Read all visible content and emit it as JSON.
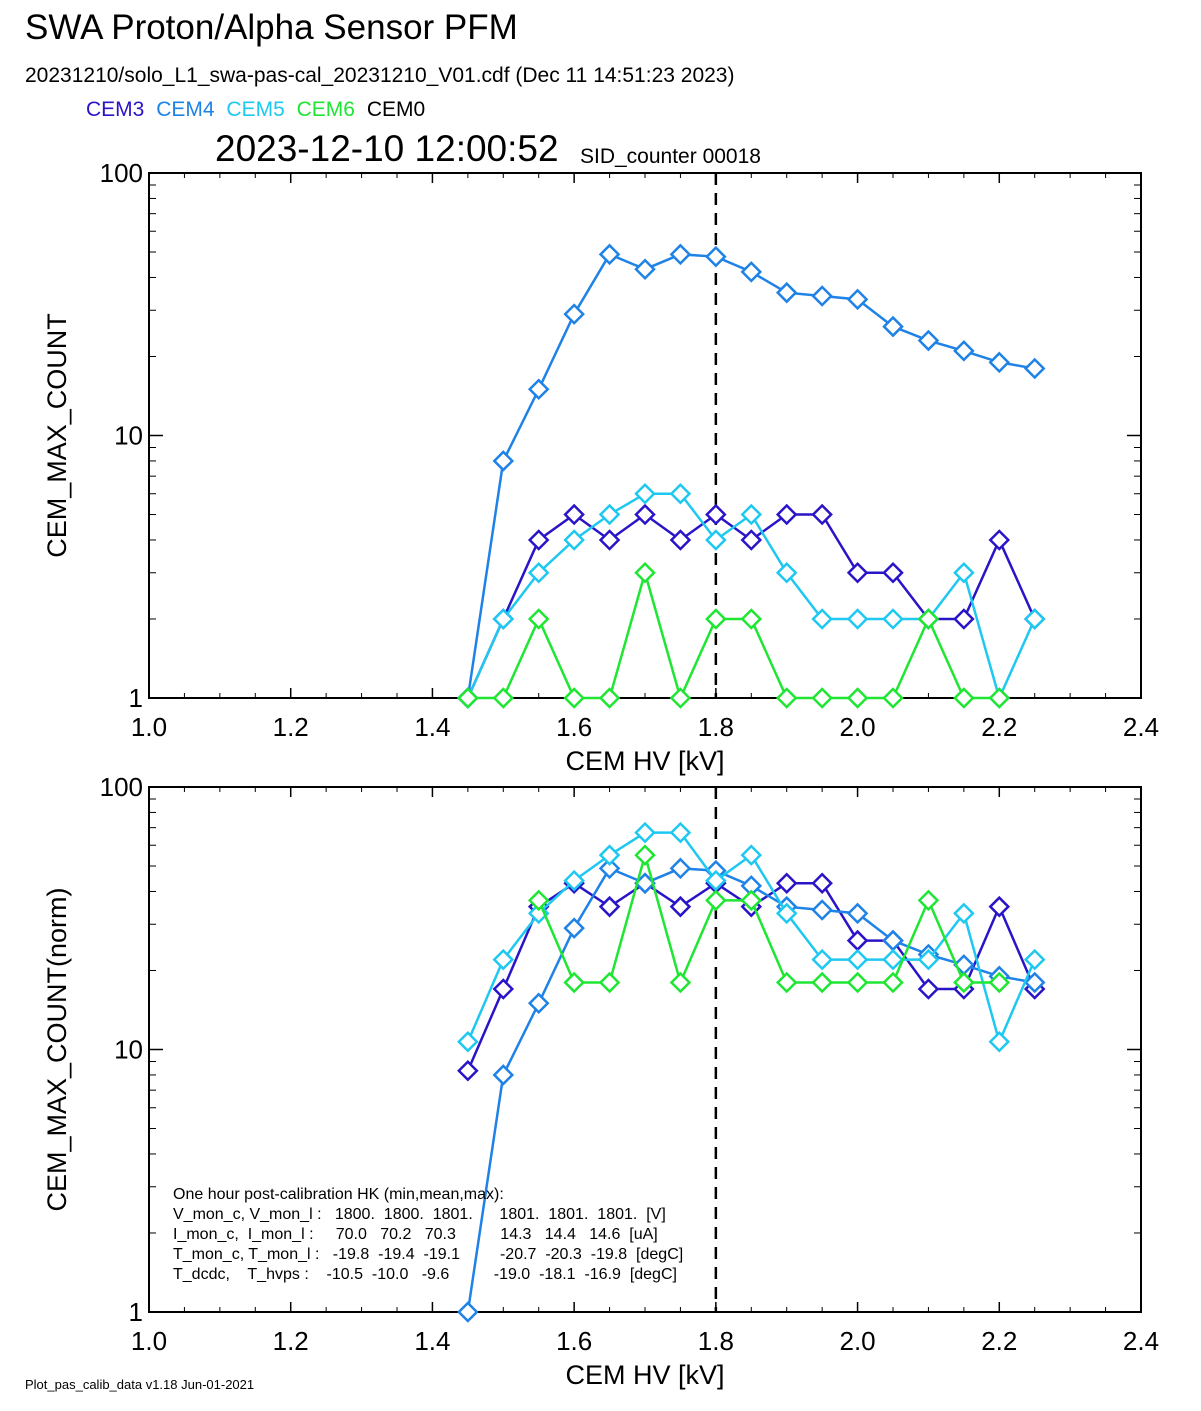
{
  "header": {
    "title": "SWA Proton/Alpha Sensor PFM",
    "subtitle": "20231210/solo_L1_swa-pas-cal_20231210_V01.cdf  (Dec 11 14:51:23 2023)",
    "timestamp": "2023-12-10 12:00:52",
    "sid_counter": "SID_counter 00018"
  },
  "legend": [
    {
      "label": "CEM3",
      "color": "#2a14c8"
    },
    {
      "label": "CEM4",
      "color": "#1e82e6"
    },
    {
      "label": "CEM5",
      "color": "#1ec8f0"
    },
    {
      "label": "CEM6",
      "color": "#1ee632"
    },
    {
      "label": "CEM0",
      "color": "#000000"
    }
  ],
  "footer": "Plot_pas_calib_data v1.18 Jun-01-2021",
  "hk_box": [
    "One hour post-calibration HK (min,mean,max):",
    "V_mon_c, V_mon_l :   1800.  1800.  1801.      1801.  1801.  1801.  [V]",
    "I_mon_c,  I_mon_l :     70.0   70.2   70.3          14.3   14.4   14.6  [uA]",
    "T_mon_c, T_mon_l :   -19.8  -19.4  -19.1         -20.7  -20.3  -19.8  [degC]",
    "T_dcdc,    T_hvps :    -10.5  -10.0   -9.6          -19.0  -18.1  -16.9  [degC]"
  ],
  "chart_data": [
    {
      "type": "line",
      "xlabel": "CEM HV [kV]",
      "ylabel": "CEM_MAX_COUNT",
      "xlim": [
        1.0,
        2.4
      ],
      "ylim": [
        1,
        100
      ],
      "yscale": "log",
      "x_ticks": [
        "1.0",
        "1.2",
        "1.4",
        "1.6",
        "1.8",
        "2.0",
        "2.2",
        "2.4"
      ],
      "y_ticks": [
        "1",
        "10",
        "100"
      ],
      "vline_x": 1.8,
      "x": [
        1.45,
        1.5,
        1.55,
        1.6,
        1.65,
        1.7,
        1.75,
        1.8,
        1.85,
        1.9,
        1.95,
        2.0,
        2.05,
        2.1,
        2.15,
        2.2,
        2.25
      ],
      "series": [
        {
          "name": "CEM3",
          "color": "#2a14c8",
          "values": [
            1,
            2,
            4,
            5,
            4,
            5,
            4,
            5,
            4,
            5,
            5,
            3,
            3,
            2,
            2,
            4,
            2
          ]
        },
        {
          "name": "CEM4",
          "color": "#1e82e6",
          "values": [
            1,
            8,
            15,
            29,
            49,
            43,
            49,
            48,
            42,
            35,
            34,
            33,
            26,
            23,
            21,
            19,
            18
          ]
        },
        {
          "name": "CEM5",
          "color": "#1ec8f0",
          "values": [
            1,
            2,
            3,
            4,
            5,
            6,
            6,
            4,
            5,
            3,
            2,
            2,
            2,
            2,
            3,
            1,
            2
          ]
        },
        {
          "name": "CEM6",
          "color": "#1ee632",
          "values": [
            1,
            1,
            2,
            1,
            1,
            3,
            1,
            2,
            2,
            1,
            1,
            1,
            1,
            2,
            1,
            1,
            null
          ]
        }
      ]
    },
    {
      "type": "line",
      "xlabel": "CEM HV [kV]",
      "ylabel": "CEM_MAX_COUNT(norm)",
      "xlim": [
        1.0,
        2.4
      ],
      "ylim": [
        1,
        100
      ],
      "yscale": "log",
      "x_ticks": [
        "1.0",
        "1.2",
        "1.4",
        "1.6",
        "1.8",
        "2.0",
        "2.2",
        "2.4"
      ],
      "y_ticks": [
        "1",
        "10",
        "100"
      ],
      "vline_x": 1.8,
      "x": [
        1.45,
        1.5,
        1.55,
        1.6,
        1.65,
        1.7,
        1.75,
        1.8,
        1.85,
        1.9,
        1.95,
        2.0,
        2.05,
        2.1,
        2.15,
        2.2,
        2.25
      ],
      "series": [
        {
          "name": "CEM3",
          "color": "#2a14c8",
          "values": [
            8.3,
            17,
            35,
            43,
            35,
            43,
            35,
            43,
            35,
            43,
            43,
            26,
            26,
            17,
            17,
            35,
            17
          ]
        },
        {
          "name": "CEM4",
          "color": "#1e82e6",
          "values": [
            1,
            8,
            15,
            29,
            49,
            43,
            49,
            48,
            42,
            35,
            34,
            33,
            26,
            23,
            21,
            19,
            18
          ]
        },
        {
          "name": "CEM5",
          "color": "#1ec8f0",
          "values": [
            10.7,
            22,
            33,
            44,
            55,
            67,
            67,
            44,
            55,
            33,
            22,
            22,
            22,
            22,
            33,
            10.7,
            22
          ]
        },
        {
          "name": "CEM6",
          "color": "#1ee632",
          "values": [
            null,
            null,
            37,
            18,
            18,
            55,
            18,
            37,
            37,
            18,
            18,
            18,
            18,
            37,
            18,
            18,
            null
          ]
        }
      ]
    }
  ]
}
